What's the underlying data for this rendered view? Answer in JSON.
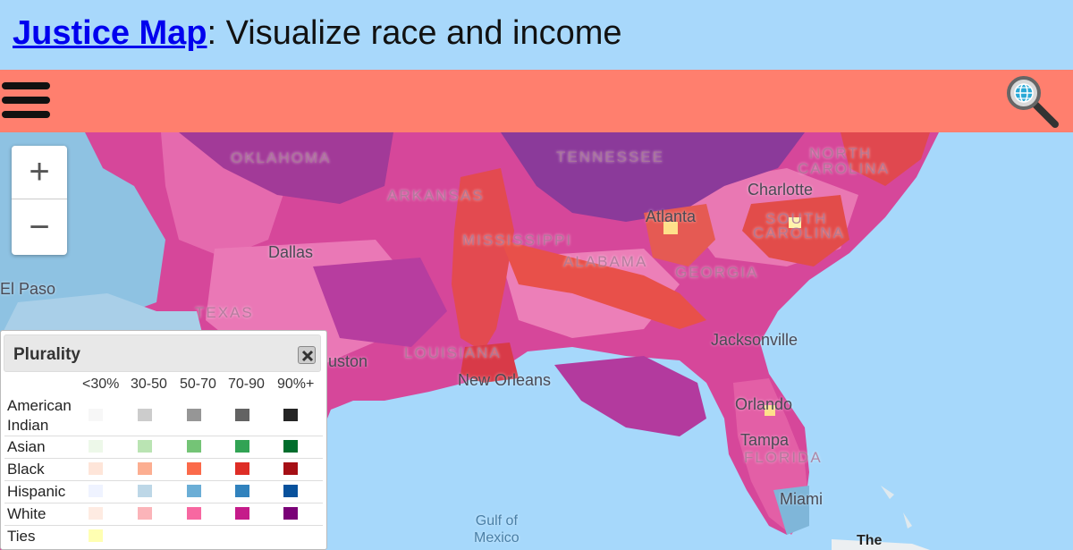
{
  "header": {
    "link_text": "Justice Map",
    "subtitle": ": Visualize race and income"
  },
  "toolbar": {
    "menu_icon": "hamburger-menu-icon",
    "search_icon": "globe-search-icon"
  },
  "map": {
    "state_labels": [
      "OKLAHOMA",
      "TENNESSEE",
      "NORTH",
      "CAROLINA",
      "ARKANSAS",
      "MISSISSIPPI",
      "ALABAMA",
      "GEORGIA",
      "SOUTH",
      "CAROLINA",
      "TEXAS",
      "LOUISIANA",
      "FLORIDA"
    ],
    "city_labels": [
      "Charlotte",
      "Atlanta",
      "Dallas",
      "El Paso",
      "Jacksonville",
      "uston",
      "New Orleans",
      "Orlando",
      "Tampa",
      "Miami"
    ],
    "water_labels": [
      "Gulf of",
      "Mexico"
    ],
    "partial_label": "The"
  },
  "zoom": {
    "in_label": "+",
    "out_label": "−"
  },
  "legend": {
    "title": "Plurality",
    "columns": [
      "<30%",
      "30-50",
      "50-70",
      "70-90",
      "90%+"
    ],
    "rows": [
      {
        "label": "American Indian",
        "colors": [
          "#f7f7f7",
          "#cccccc",
          "#969696",
          "#636363",
          "#252525"
        ]
      },
      {
        "label": "Asian",
        "colors": [
          "#edf8e9",
          "#bae4b3",
          "#74c476",
          "#31a354",
          "#006d2c"
        ]
      },
      {
        "label": "Black",
        "colors": [
          "#fee5d9",
          "#fcae91",
          "#fb6a4a",
          "#de2d26",
          "#a50f15"
        ]
      },
      {
        "label": "Hispanic",
        "colors": [
          "#eff3ff",
          "#bdd7e7",
          "#6baed6",
          "#3182bd",
          "#08519c"
        ]
      },
      {
        "label": "White",
        "colors": [
          "#feebe2",
          "#fbb4b9",
          "#f768a1",
          "#c51b8a",
          "#7a0177"
        ]
      },
      {
        "label": "Ties",
        "colors": [
          "#ffffb2"
        ]
      }
    ]
  }
}
